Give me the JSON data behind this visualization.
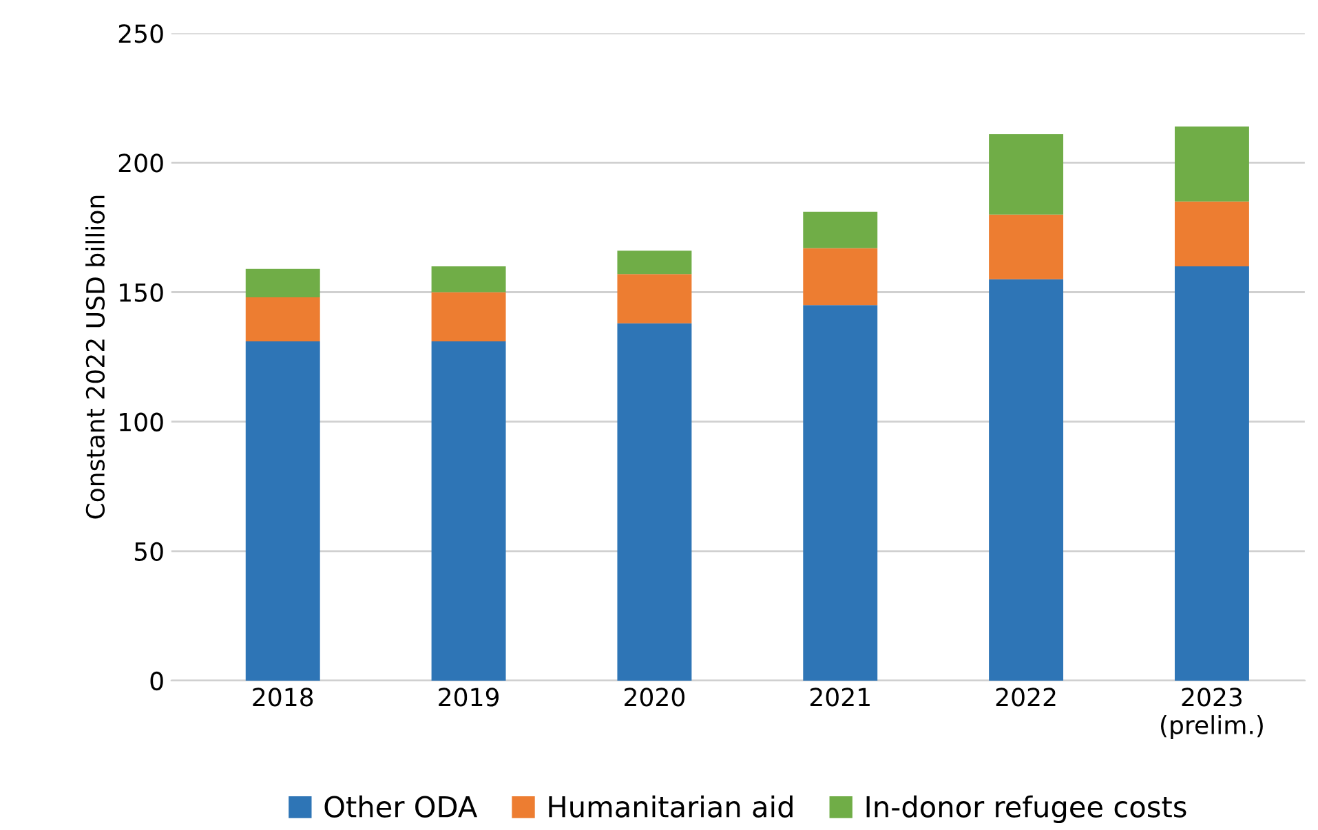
{
  "chart_data": {
    "type": "bar",
    "ylabel": "Constant 2022 USD billion",
    "categories": [
      "2018",
      "2019",
      "2020",
      "2021",
      "2022",
      "2023\n(prelim.)"
    ],
    "series": [
      {
        "name": "Other ODA",
        "color": "#2e75b6",
        "values": [
          131,
          131,
          138,
          145,
          155,
          160
        ]
      },
      {
        "name": "Humanitarian aid",
        "color": "#ed7d31",
        "values": [
          17,
          19,
          19,
          22,
          25,
          25
        ]
      },
      {
        "name": "In-donor refugee costs",
        "color": "#70ad47",
        "values": [
          11,
          10,
          9,
          14,
          31,
          29
        ]
      }
    ],
    "stacked": true,
    "ylim": [
      0,
      250
    ],
    "yticks": [
      0,
      50,
      100,
      150,
      200,
      250
    ],
    "grid": "y",
    "legend": "bottom"
  }
}
